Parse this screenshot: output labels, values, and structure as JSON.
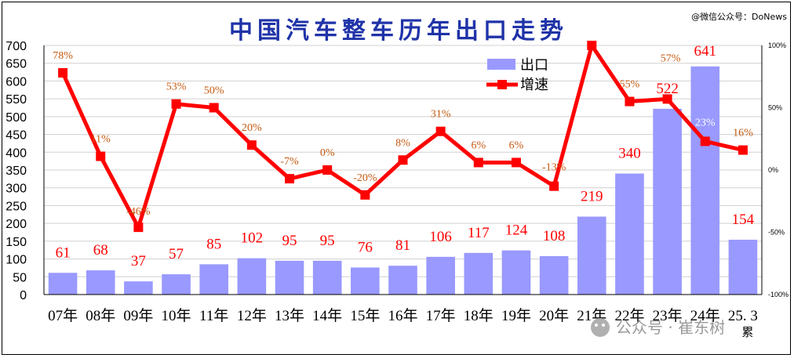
{
  "title": "中国汽车整车历年出口走势",
  "credit": "@微信公众号：DoNews",
  "watermark": "公众号 · 崔东树",
  "legend": {
    "bar_label": "出口",
    "line_label": "增速"
  },
  "chart_data": {
    "type": "bar",
    "title": "中国汽车整车历年出口走势",
    "categories": [
      "07年",
      "08年",
      "09年",
      "10年",
      "11年",
      "12年",
      "13年",
      "14年",
      "15年",
      "16年",
      "17年",
      "18年",
      "19年",
      "20年",
      "21年",
      "22年",
      "23年",
      "24年",
      "25. 3"
    ],
    "category_sublabels": [
      "",
      "",
      "",
      "",
      "",
      "",
      "",
      "",
      "",
      "",
      "",
      "",
      "",
      "",
      "",
      "",
      "",
      "",
      "累"
    ],
    "series": [
      {
        "name": "出口",
        "type": "bar",
        "axis": "left",
        "values": [
          61,
          68,
          37,
          57,
          85,
          102,
          95,
          95,
          76,
          81,
          106,
          117,
          124,
          108,
          219,
          340,
          522,
          641,
          154
        ],
        "labels": [
          "61",
          "68",
          "37",
          "57",
          "85",
          "102",
          "95",
          "95",
          "76",
          "81",
          "106",
          "117",
          "124",
          "108",
          "219",
          "340",
          "522",
          "641",
          "154"
        ]
      },
      {
        "name": "增速",
        "type": "line",
        "axis": "right",
        "values": [
          78,
          11,
          -46,
          53,
          50,
          20,
          -7,
          0,
          -20,
          8,
          31,
          6,
          6,
          -13,
          100,
          55,
          57,
          23,
          16
        ],
        "labels": [
          "78%",
          "11%",
          "-46%",
          "53%",
          "50%",
          "20%",
          "-7%",
          "0%",
          "-20%",
          "8%",
          "31%",
          "6%",
          "6%",
          "-13%",
          "",
          "55%",
          "57%",
          "23%",
          "16%"
        ]
      }
    ],
    "y_left": {
      "min": 0,
      "max": 700,
      "step": 50,
      "ticks": [
        "0",
        "50",
        "100",
        "150",
        "200",
        "250",
        "300",
        "350",
        "400",
        "450",
        "500",
        "550",
        "600",
        "650",
        "700"
      ]
    },
    "y_right": {
      "min": -100,
      "max": 100,
      "step": 50,
      "ticks": [
        "-100%",
        "-50%",
        "0%",
        "50%",
        "100%"
      ]
    },
    "grid": true,
    "legend_position": "top-right",
    "colors": {
      "bar": "#9999ff",
      "line": "#ff0000",
      "title": "#1f33a8",
      "pct_label": "#c55a11",
      "bar_label": "#ff0000"
    }
  }
}
